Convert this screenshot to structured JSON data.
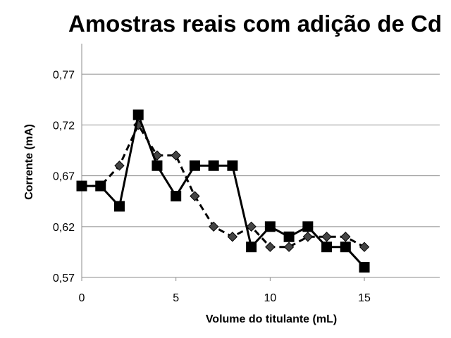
{
  "chart_data": {
    "type": "line",
    "title": "Amostras reais com adição de Cd",
    "xlabel": "Volume do titulante (mL)",
    "ylabel": "Corrente (mA)",
    "xlim": [
      0,
      19
    ],
    "ylim": [
      0.57,
      0.8
    ],
    "x_ticks": [
      "0",
      "5",
      "10",
      "15"
    ],
    "x_tick_values": [
      0,
      5,
      10,
      15
    ],
    "y_ticks": [
      "0,57",
      "0,62",
      "0,67",
      "0,72",
      "0,77"
    ],
    "y_tick_values": [
      0.57,
      0.62,
      0.67,
      0.72,
      0.77
    ],
    "grid": "horizontal",
    "legend": "none",
    "series": [
      {
        "style": "solid",
        "marker": "square",
        "color": "#000000",
        "x": [
          0,
          1,
          2,
          3,
          4,
          5,
          6,
          7,
          8,
          9,
          10,
          11,
          12,
          13,
          14,
          15
        ],
        "y": [
          0.66,
          0.66,
          0.64,
          0.73,
          0.68,
          0.65,
          0.68,
          0.68,
          0.68,
          0.6,
          0.62,
          0.61,
          0.62,
          0.6,
          0.6,
          0.58
        ]
      },
      {
        "style": "dashed",
        "marker": "diamond",
        "color": "#000000",
        "marker_fill": "#444444",
        "x": [
          0,
          1,
          2,
          3,
          4,
          5,
          6,
          7,
          8,
          9,
          10,
          11,
          12,
          13,
          14,
          15
        ],
        "y": [
          0.66,
          0.66,
          0.68,
          0.72,
          0.69,
          0.69,
          0.65,
          0.62,
          0.61,
          0.62,
          0.6,
          0.6,
          0.61,
          0.61,
          0.61,
          0.6
        ]
      }
    ]
  }
}
